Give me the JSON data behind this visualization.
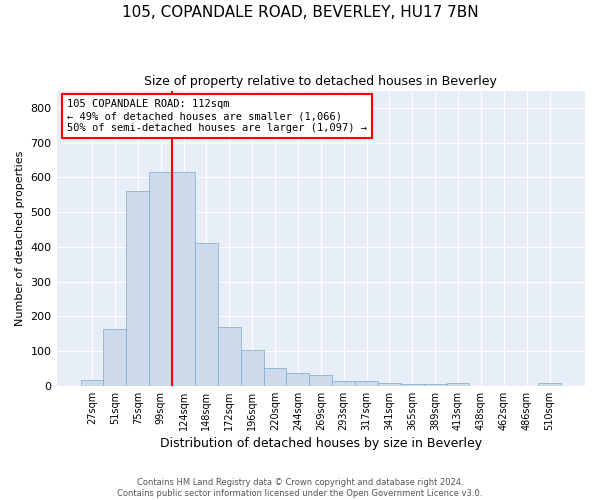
{
  "title": "105, COPANDALE ROAD, BEVERLEY, HU17 7BN",
  "subtitle": "Size of property relative to detached houses in Beverley",
  "xlabel": "Distribution of detached houses by size in Beverley",
  "ylabel": "Number of detached properties",
  "bar_color": "#ccdaeb",
  "bar_edge_color": "#7aaad0",
  "background_color": "#e8eef8",
  "grid_color": "#ffffff",
  "bin_labels": [
    "27sqm",
    "51sqm",
    "75sqm",
    "99sqm",
    "124sqm",
    "148sqm",
    "172sqm",
    "196sqm",
    "220sqm",
    "244sqm",
    "269sqm",
    "293sqm",
    "317sqm",
    "341sqm",
    "365sqm",
    "389sqm",
    "413sqm",
    "438sqm",
    "462sqm",
    "486sqm",
    "510sqm"
  ],
  "bar_heights": [
    18,
    165,
    560,
    615,
    615,
    410,
    168,
    102,
    50,
    38,
    30,
    14,
    13,
    9,
    5,
    5,
    7,
    0,
    0,
    0,
    7
  ],
  "ylim": [
    0,
    850
  ],
  "yticks": [
    0,
    100,
    200,
    300,
    400,
    500,
    600,
    700,
    800
  ],
  "vline_x_index": 3.5,
  "annotation_text": "105 COPANDALE ROAD: 112sqm\n← 49% of detached houses are smaller (1,066)\n50% of semi-detached houses are larger (1,097) →",
  "annotation_box_color": "white",
  "annotation_box_edge_color": "red",
  "vline_color": "red",
  "footer_text": "Contains HM Land Registry data © Crown copyright and database right 2024.\nContains public sector information licensed under the Open Government Licence v3.0."
}
